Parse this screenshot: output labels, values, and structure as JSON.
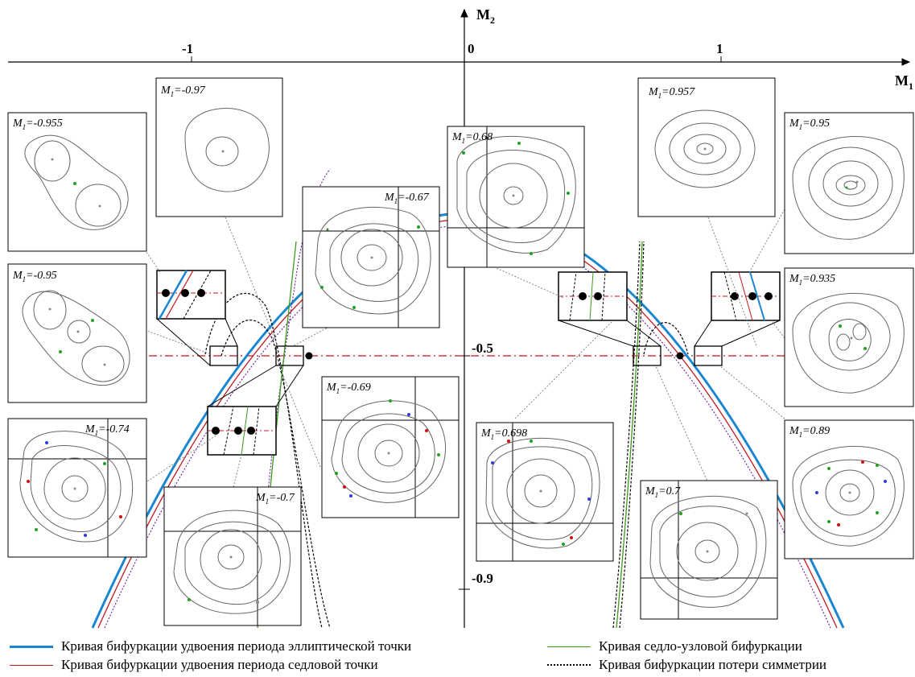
{
  "axes": {
    "x_label": "M",
    "x_sub": "1",
    "y_label": "M",
    "y_sub": "2",
    "x_ticks": [
      "-1",
      "0",
      "1"
    ],
    "y_ticks": [
      "-0.5",
      "-0.9"
    ]
  },
  "colors": {
    "elliptic": "#1a86d0",
    "saddle": "#c4161c",
    "saddle_node": "#3c9a1e",
    "symmetry": "#000000",
    "symmetry_purple": "#6a1b9a",
    "dashdot": "#c4161c",
    "panel_green": "#22a022",
    "panel_red": "#d01010",
    "panel_blue": "#2b3fd8",
    "panel_gray": "#888888"
  },
  "panels": [
    {
      "id": "p-0955n",
      "label": "M",
      "sub": "1",
      "value": "=-0.955"
    },
    {
      "id": "p-097n",
      "label": "M",
      "sub": "1",
      "value": "=-0.97"
    },
    {
      "id": "p-095n",
      "label": "M",
      "sub": "1",
      "value": "=-0.95"
    },
    {
      "id": "p-067n",
      "label": "M",
      "sub": "1",
      "value": "=-0.67"
    },
    {
      "id": "p-074n",
      "label": "M",
      "sub": "1",
      "value": "=-0.74"
    },
    {
      "id": "p-069n",
      "label": "M",
      "sub": "1",
      "value": "=-0.69"
    },
    {
      "id": "p-07n",
      "label": "M",
      "sub": "1",
      "value": "=-0.7"
    },
    {
      "id": "p-068",
      "label": "M",
      "sub": "1",
      "value": "=0.68"
    },
    {
      "id": "p-0698",
      "label": "M",
      "sub": "1",
      "value": "=0.698"
    },
    {
      "id": "p-07",
      "label": "M",
      "sub": "1",
      "value": "=0.7"
    },
    {
      "id": "p-0957",
      "label": "M",
      "sub": "1",
      "value": "=0.957"
    },
    {
      "id": "p-095",
      "label": "M",
      "sub": "1",
      "value": "=0.95"
    },
    {
      "id": "p-0935",
      "label": "M",
      "sub": "1",
      "value": "=0.935"
    },
    {
      "id": "p-089",
      "label": "M",
      "sub": "1",
      "value": "=0.89"
    }
  ],
  "legend": [
    {
      "text": "Кривая бифуркации удвоения периода эллиптической точки",
      "color": "#1a86d0",
      "style": "solid"
    },
    {
      "text": "Кривая бифуркации удвоения периода седловой точки",
      "color": "#c4161c",
      "style": "solid"
    },
    {
      "text": "Кривая седло-узловой бифуркации",
      "color": "#3c9a1e",
      "style": "solid"
    },
    {
      "text": "Кривая бифуркации потери симметрии",
      "color": "#000000",
      "style": "dotted"
    }
  ]
}
